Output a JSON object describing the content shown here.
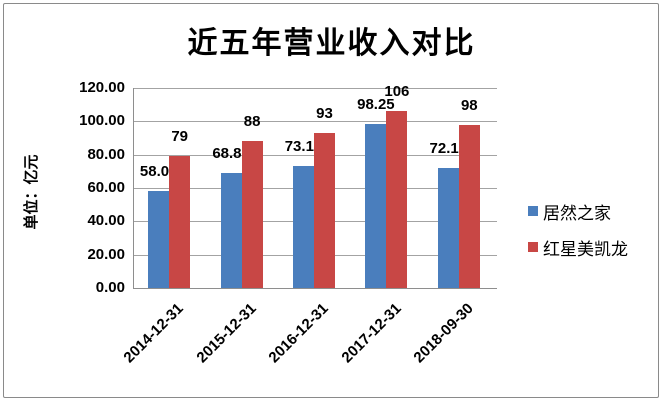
{
  "chart_data": {
    "type": "bar",
    "title": "近五年营业收入对比",
    "ylabel": "单位：亿元",
    "xlabel": "",
    "categories": [
      "2014-12-31",
      "2015-12-31",
      "2016-12-31",
      "2017-12-31",
      "2018-09-30"
    ],
    "series": [
      {
        "name": "居然之家",
        "color": "#4A7EBD",
        "values": [
          58.02,
          68.89,
          73.17,
          98.25,
          72.15
        ],
        "labels": [
          "58.02",
          "68.89",
          "73.17",
          "98.25",
          "72.15"
        ]
      },
      {
        "name": "红星美凯龙",
        "color": "#C84745",
        "values": [
          79,
          88,
          93,
          106,
          98
        ],
        "labels": [
          "79",
          "88",
          "93",
          "106",
          "98"
        ]
      }
    ],
    "ylim": [
      0,
      120
    ],
    "ytick_step": 20,
    "ytick_labels": [
      "0.00",
      "20.00",
      "40.00",
      "60.00",
      "80.00",
      "100.00",
      "120.00"
    ],
    "grid": true,
    "legend_position": "right",
    "colors": {
      "gridline": "#a3a3a3",
      "axis": "#8e8e8e",
      "border": "#8a8a8a",
      "background": "#ffffff",
      "text": "#000000"
    }
  }
}
